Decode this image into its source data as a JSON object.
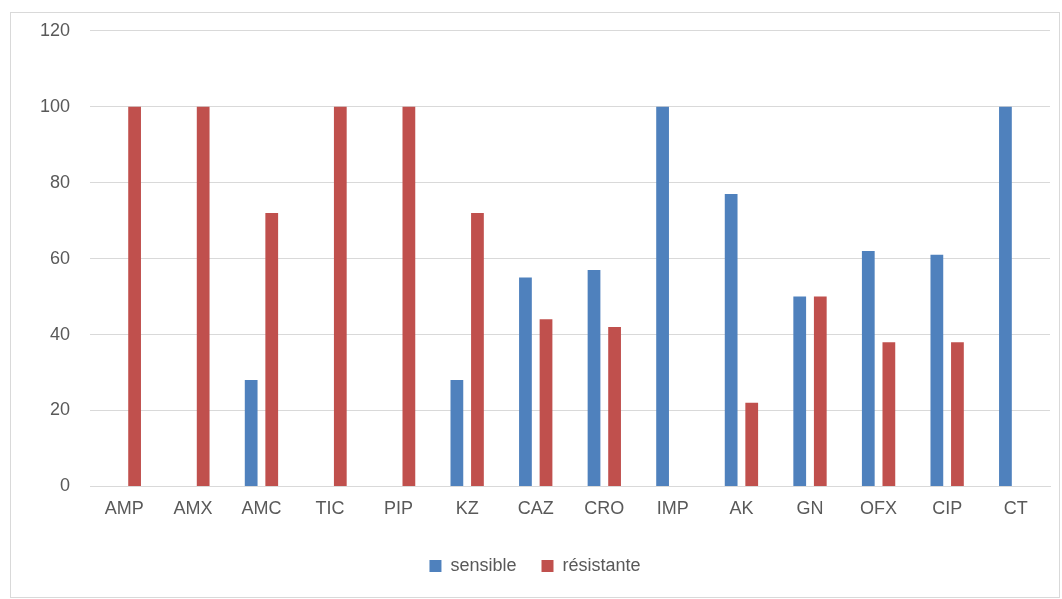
{
  "chart_data": {
    "type": "bar",
    "categories": [
      "AMP",
      "AMX",
      "AMC",
      "TIC",
      "PIP",
      "KZ",
      "CAZ",
      "CRO",
      "IMP",
      "AK",
      "GN",
      "OFX",
      "CIP",
      "CT"
    ],
    "series": [
      {
        "name": "sensible",
        "color": "#4f81bd",
        "values": [
          0,
          0,
          28,
          0,
          0,
          28,
          55,
          57,
          100,
          77,
          50,
          62,
          61,
          100
        ]
      },
      {
        "name": "résistante",
        "color": "#c0504d",
        "values": [
          100,
          100,
          72,
          100,
          100,
          72,
          44,
          42,
          0,
          22,
          50,
          38,
          38,
          0
        ]
      }
    ],
    "ylim": [
      0,
      120
    ],
    "yticks": [
      0,
      20,
      40,
      60,
      80,
      100,
      120
    ],
    "grid": "y",
    "legend": "bottom"
  }
}
